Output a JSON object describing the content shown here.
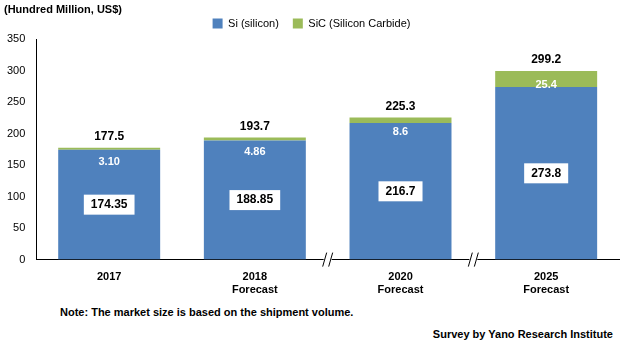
{
  "chart_data": {
    "type": "bar",
    "y_label": "(Hundred Million, US$)",
    "categories": [
      "2017",
      [
        "2018",
        "Forecast"
      ],
      [
        "2020",
        "Forecast"
      ],
      [
        "2025",
        "Forecast"
      ]
    ],
    "series": [
      {
        "name": "Si (silicon)",
        "color": "#4f81bd",
        "values": [
          174.35,
          188.85,
          216.7,
          273.8
        ]
      },
      {
        "name": "SiC (Silicon Carbide)",
        "color": "#9bbb59",
        "values": [
          3.1,
          4.86,
          8.6,
          25.4
        ],
        "value_labels": [
          "3.10",
          "4.86",
          "8.6",
          "25.4"
        ]
      }
    ],
    "totals": [
      177.5,
      193.7,
      225.3,
      299.2
    ],
    "stacked": true,
    "data_labels": true,
    "legend": "top",
    "grid": false,
    "ylim": [
      0,
      350
    ],
    "yticks": [
      0,
      50,
      100,
      150,
      200,
      250,
      300,
      350
    ],
    "note": "Note: The market size is based on the shipment volume.",
    "source": "Survey by Yano Research Institute"
  }
}
